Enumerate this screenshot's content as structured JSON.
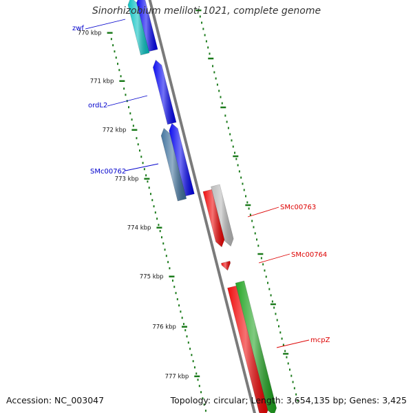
{
  "title": "Sinorhizobium meliloti 1021, complete genome",
  "footer": {
    "accession": "Accession: NC_003047",
    "summary": "Topology: circular; Length: 3,654,135 bp; Genes: 3,425"
  },
  "colors": {
    "backbone": "#7a7a7a",
    "tick": "#1a7a1a",
    "forward_label": "#0000cc",
    "reverse_label": "#dd0000"
  },
  "scale": {
    "ticks": [
      {
        "label": "770 kbp"
      },
      {
        "label": "771 kbp"
      },
      {
        "label": "772 kbp"
      },
      {
        "label": "773 kbp"
      },
      {
        "label": "774 kbp"
      },
      {
        "label": "775 kbp"
      },
      {
        "label": "776 kbp"
      },
      {
        "label": "777 kbp"
      }
    ]
  },
  "features": [
    {
      "label": "zwf",
      "strand": "forward",
      "color": "#00bfbf",
      "lane": "outer"
    },
    {
      "label": "",
      "strand": "forward",
      "color": "#0000ee",
      "lane": "inner"
    },
    {
      "label": "ordL2",
      "strand": "forward",
      "color": "#0000ee",
      "lane": "inner"
    },
    {
      "label": "SMc00762",
      "strand": "forward",
      "color": "#3a6e9a",
      "lane": "outer"
    },
    {
      "label": "",
      "strand": "forward",
      "color": "#0000ee",
      "lane": "inner"
    },
    {
      "label": "",
      "strand": "reverse",
      "color": "#ee0000",
      "lane": "inner"
    },
    {
      "label": "SMc00763",
      "strand": "reverse",
      "color": "#b8b8b8",
      "lane": "outer"
    },
    {
      "label": "SMc00764",
      "strand": "reverse",
      "color": "#ee0000",
      "lane": "inner"
    },
    {
      "label": "",
      "strand": "reverse",
      "color": "#ee0000",
      "lane": "inner"
    },
    {
      "label": "mcpZ",
      "strand": "reverse",
      "color": "#1aa01a",
      "lane": "outer"
    }
  ]
}
